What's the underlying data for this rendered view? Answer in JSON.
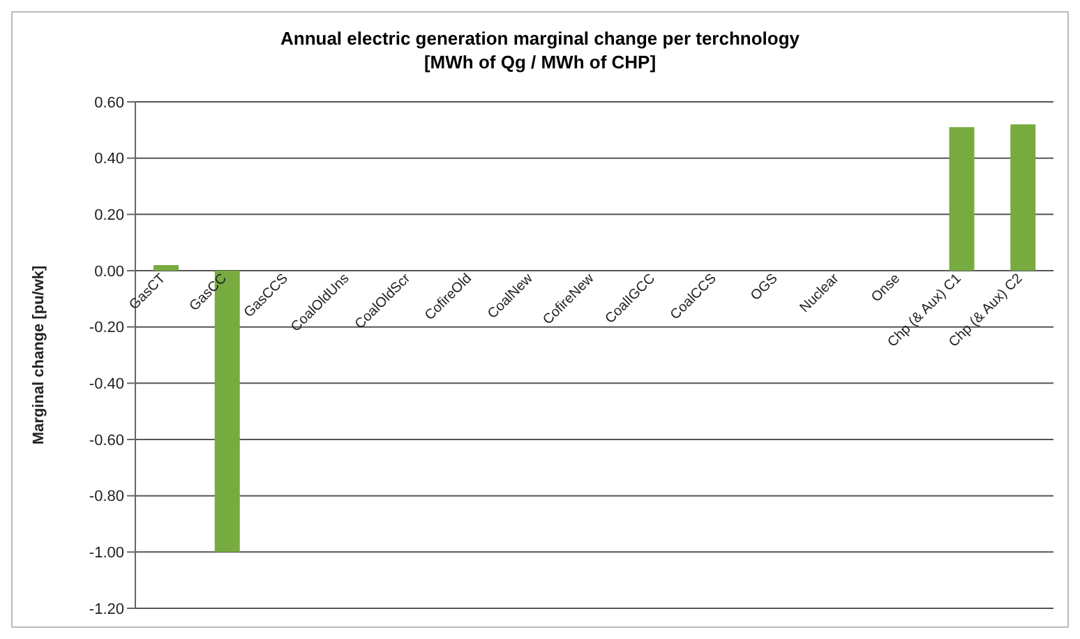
{
  "chart_data": {
    "type": "bar",
    "title": "Annual electric generation marginal change per terchnology",
    "subtitle": "[MWh of Qg / MWh of CHP]",
    "ylabel": "Marginal change [pu/wk]",
    "categories": [
      "GasCT",
      "GasCC",
      "GasCCS",
      "CoalOldUns",
      "CoalOldScr",
      "CofireOld",
      "CoalNew",
      "CofireNew",
      "CoalIGCC",
      "CoalCCS",
      "OGS",
      "Nuclear",
      "Onse",
      "Chp (& Aux) C1",
      "Chp (& Aux) C2"
    ],
    "values": [
      0.02,
      -1.0,
      0,
      0,
      0,
      0,
      0,
      0,
      0,
      0,
      0,
      0,
      0,
      0.51,
      0.52
    ],
    "color": "#77ab3f",
    "ylim": [
      -1.2,
      0.6
    ],
    "yticks": [
      {
        "value": -1.2,
        "label": "-1.20"
      },
      {
        "value": -1.0,
        "label": "-1.00"
      },
      {
        "value": -0.8,
        "label": "-0.80"
      },
      {
        "value": -0.6,
        "label": "-0.60"
      },
      {
        "value": -0.4,
        "label": "-0.40"
      },
      {
        "value": -0.2,
        "label": "-0.20"
      },
      {
        "value": 0,
        "label": "0.00"
      },
      {
        "value": 0.2,
        "label": "0.20"
      },
      {
        "value": 0.4,
        "label": "0.40"
      },
      {
        "value": 0.6,
        "label": "0.60"
      }
    ],
    "grid": "y"
  }
}
